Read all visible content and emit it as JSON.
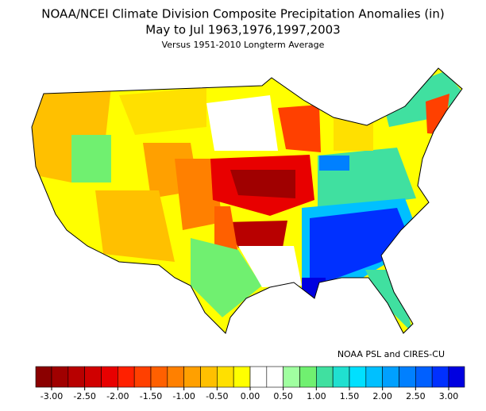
{
  "header": {
    "title": "NOAA/NCEI Climate Division Composite Precipitation Anomalies (in)",
    "period": "May to Jul  1963,1976,1997,2003",
    "baseline": "Versus 1951-2010 Longterm Average"
  },
  "credit": "NOAA PSL and CIRES-CU",
  "colorbar": {
    "colors": [
      "#8b0000",
      "#a00000",
      "#b80000",
      "#d00000",
      "#e80000",
      "#ff2000",
      "#ff4000",
      "#ff6000",
      "#ff8000",
      "#ffa000",
      "#ffc000",
      "#ffe000",
      "#ffff00",
      "#ffffff",
      "#ffffff",
      "#a0ffa0",
      "#70f070",
      "#40e0a0",
      "#20e0d0",
      "#00e0ff",
      "#00c0ff",
      "#00a0ff",
      "#0080ff",
      "#0060ff",
      "#0030ff",
      "#0000e0"
    ],
    "ticks": [
      {
        "value": -3,
        "label": "-3.00"
      },
      {
        "value": -2.5,
        "label": "-2.50"
      },
      {
        "value": -2,
        "label": "-2.00"
      },
      {
        "value": -1.5,
        "label": "-1.50"
      },
      {
        "value": -1,
        "label": "-1.00"
      },
      {
        "value": -0.5,
        "label": "-0.50"
      },
      {
        "value": 0,
        "label": "0.00"
      },
      {
        "value": 0.5,
        "label": "0.50"
      },
      {
        "value": 1,
        "label": "1.00"
      },
      {
        "value": 1.5,
        "label": "1.50"
      },
      {
        "value": 2,
        "label": "2.00"
      },
      {
        "value": 2.5,
        "label": "2.50"
      },
      {
        "value": 3,
        "label": "3.00"
      }
    ]
  }
}
